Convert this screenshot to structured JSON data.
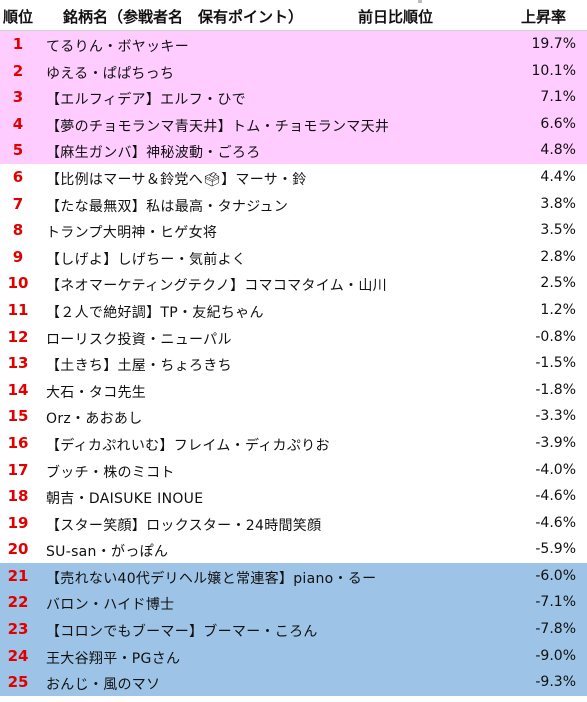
{
  "header": {
    "rank": "順位",
    "name": "銘柄名（参戦者名　保有ポイント）",
    "prev": "前日比順位",
    "rate": "上昇率"
  },
  "rows": [
    {
      "rank": "1",
      "name": "てるりん・ボヤッキー",
      "rate": "19.7%",
      "band": "pink"
    },
    {
      "rank": "2",
      "name": "ゆえる・ぱぱちっち",
      "rate": "10.1%",
      "band": "pink"
    },
    {
      "rank": "3",
      "name": "【エルフィデア】エルフ・ひで",
      "rate": "7.1%",
      "band": "pink"
    },
    {
      "rank": "4",
      "name": "【夢のチョモランマ青天井】トム・チョモランマ天井",
      "rate": "6.6%",
      "band": "pink"
    },
    {
      "rank": "5",
      "name": "【麻生ガンバ】神秘波動・ごろろ",
      "rate": "4.8%",
      "band": "pink"
    },
    {
      "rank": "6",
      "name": "【比例はマーサ＆鈴党へ🗳】マーサ・鈴",
      "rate": "4.4%",
      "band": "white"
    },
    {
      "rank": "7",
      "name": "【たな最無双】私は最高・タナジュン",
      "rate": "3.8%",
      "band": "white"
    },
    {
      "rank": "8",
      "name": "トランプ大明神・ヒゲ女将",
      "rate": "3.5%",
      "band": "white"
    },
    {
      "rank": "9",
      "name": "【しげよ】しげちー・気前よく",
      "rate": "2.8%",
      "band": "white"
    },
    {
      "rank": "10",
      "name": "【ネオマーケティングテクノ】コマコマタイム・山川",
      "rate": "2.5%",
      "band": "white"
    },
    {
      "rank": "11",
      "name": "【２人で絶好調】TP・友紀ちゃん",
      "rate": "1.2%",
      "band": "white"
    },
    {
      "rank": "12",
      "name": "ローリスク投資・ニューパル",
      "rate": "-0.8%",
      "band": "white"
    },
    {
      "rank": "13",
      "name": "【土きち】土屋・ちょろきち",
      "rate": "-1.5%",
      "band": "white"
    },
    {
      "rank": "14",
      "name": "大石・タコ先生",
      "rate": "-1.8%",
      "band": "white"
    },
    {
      "rank": "15",
      "name": "Orz・あおあし",
      "rate": "-3.3%",
      "band": "white"
    },
    {
      "rank": "16",
      "name": "【ディカぷれいむ】フレイム・ディカぷりお",
      "rate": "-3.9%",
      "band": "white"
    },
    {
      "rank": "17",
      "name": "ブッチ・株のミコト",
      "rate": "-4.0%",
      "band": "white"
    },
    {
      "rank": "18",
      "name": "朝吉・DAISUKE INOUE",
      "rate": "-4.6%",
      "band": "white"
    },
    {
      "rank": "19",
      "name": "【スター笑顔】ロックスター・24時間笑顔",
      "rate": "-4.6%",
      "band": "white"
    },
    {
      "rank": "20",
      "name": "SU-san・がっぽん",
      "rate": "-5.9%",
      "band": "white"
    },
    {
      "rank": "21",
      "name": "【売れない40代デリヘル嬢と常連客】piano・るー",
      "rate": "-6.0%",
      "band": "blue"
    },
    {
      "rank": "22",
      "name": "バロン・ハイド博士",
      "rate": "-7.1%",
      "band": "blue"
    },
    {
      "rank": "23",
      "name": "【コロンでもブーマー】ブーマー・ころん",
      "rate": "-7.8%",
      "band": "blue"
    },
    {
      "rank": "24",
      "name": "王大谷翔平・PGさん",
      "rate": "-9.0%",
      "band": "blue"
    },
    {
      "rank": "25",
      "name": "おんじ・風のマソ",
      "rate": "-9.3%",
      "band": "blue"
    }
  ],
  "colors": {
    "top_band": "#ffccff",
    "bottom_band": "#9dc3e6",
    "rank_text": "#e00000"
  }
}
